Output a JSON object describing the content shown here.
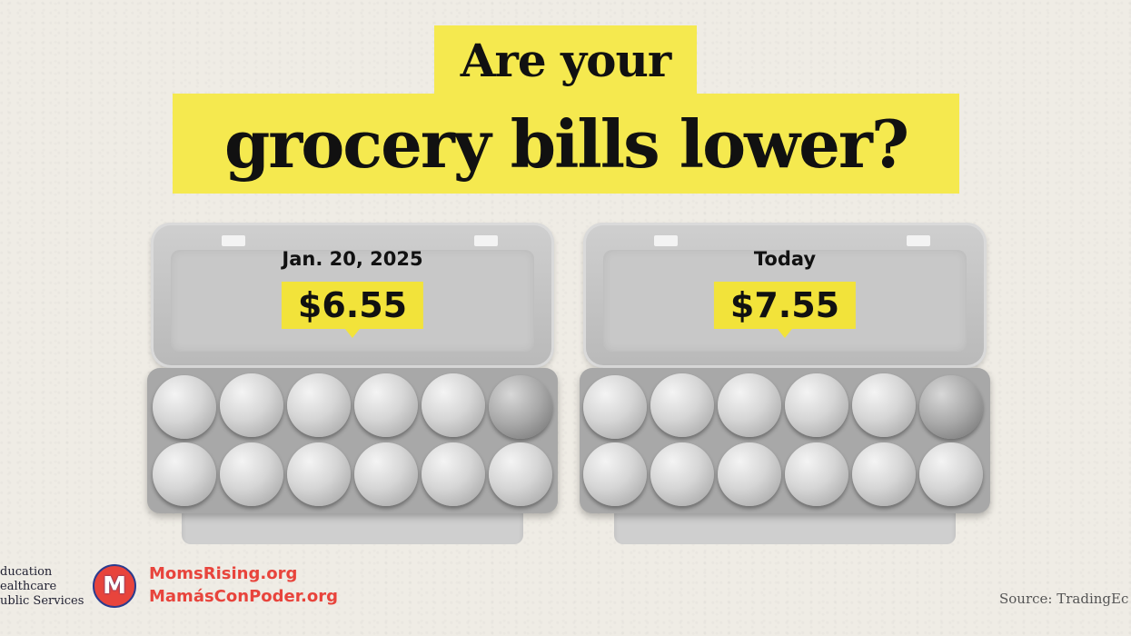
{
  "title": {
    "line1": "Are your",
    "line2": "grocery bills lower?"
  },
  "cartons": [
    {
      "label": "Jan. 20, 2025",
      "price": "$6.55"
    },
    {
      "label": "Today",
      "price": "$7.55"
    }
  ],
  "footer": {
    "services": [
      "ducation",
      "ealthcare",
      "ublic Services"
    ],
    "logo_letter": "M",
    "sites": [
      "MomsRising.org",
      "MamásConPoder.org"
    ],
    "source": "Source: TradingEc"
  },
  "colors": {
    "highlight": "#f5e94f",
    "brand_red": "#e8443c",
    "brand_blue": "#2a3c8e"
  }
}
